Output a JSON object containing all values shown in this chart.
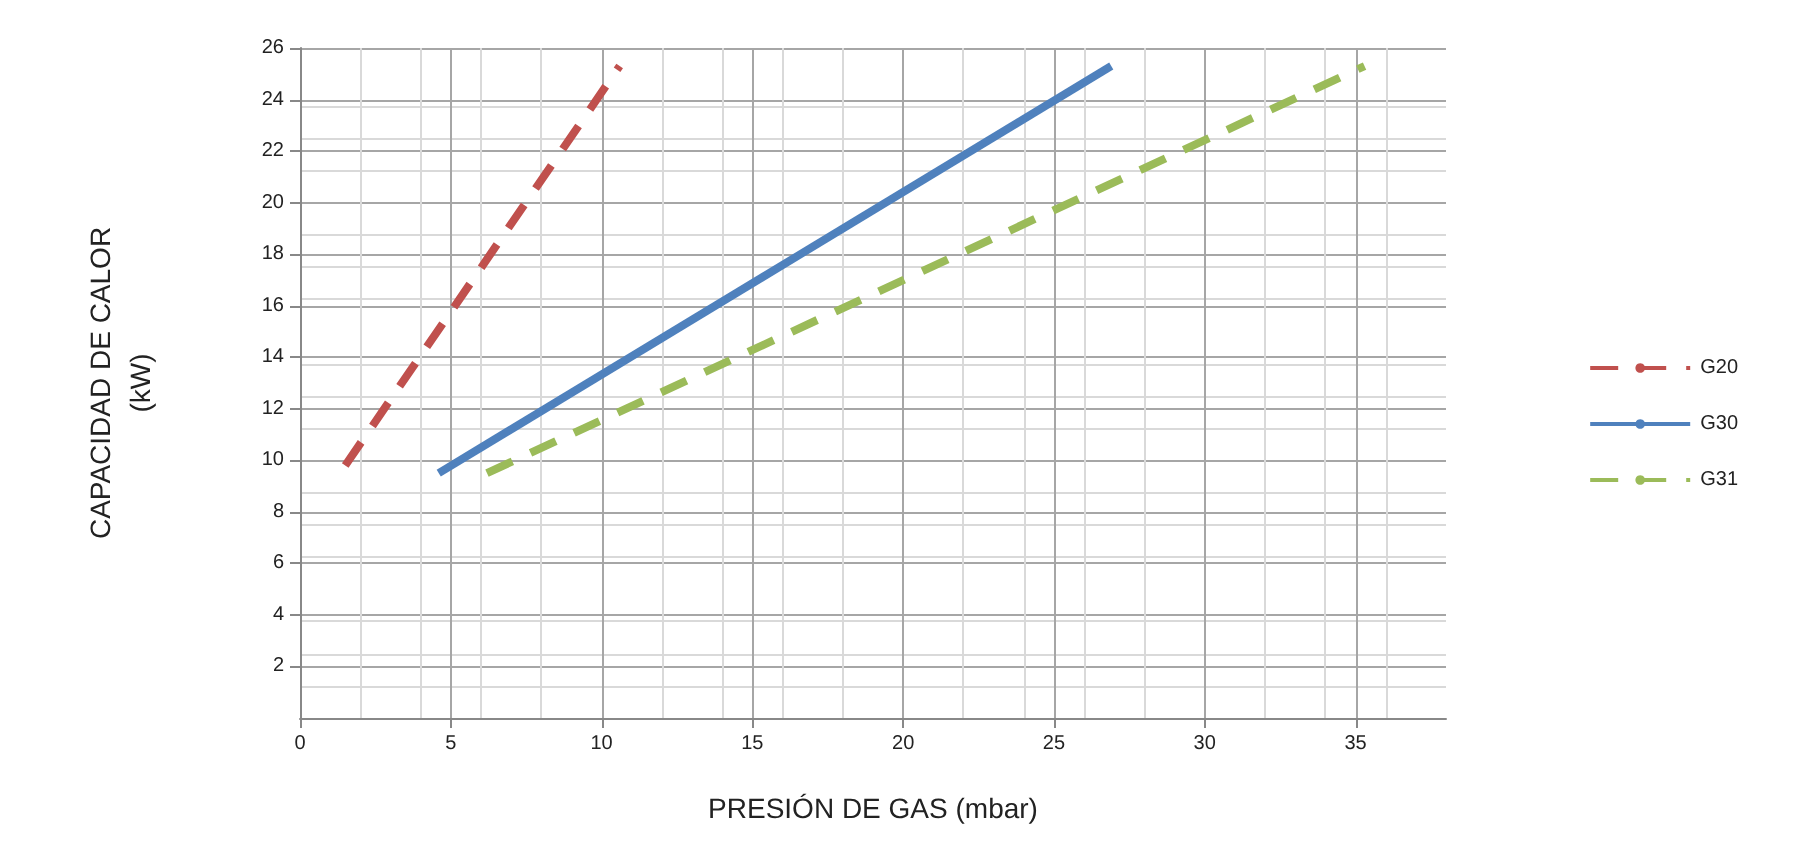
{
  "chart_data": {
    "type": "line",
    "xlabel": "PRESIÓN DE GAS (mbar)",
    "ylabel": "CAPACIDAD DE CALOR (kW)",
    "xlim": [
      0,
      38
    ],
    "xticks": [
      0,
      5,
      10,
      15,
      20,
      25,
      30,
      35
    ],
    "ylim": [
      0,
      26
    ],
    "yticks": [
      2,
      4,
      6,
      8,
      10,
      12,
      14,
      16,
      18,
      20,
      22,
      24,
      26
    ],
    "grid": true,
    "legend": "right",
    "marker": "none",
    "series": [
      {
        "name": "G20",
        "color": "#c0504d",
        "line_style": "dashed",
        "x": [
          1.5,
          10.6
        ],
        "values": [
          9.8,
          25.3
        ]
      },
      {
        "name": "G30",
        "color": "#4f81bd",
        "line_style": "solid",
        "x": [
          4.6,
          26.9
        ],
        "values": [
          9.5,
          25.3
        ]
      },
      {
        "name": "G31",
        "color": "#9bbb59",
        "line_style": "dashed",
        "x": [
          6.2,
          35.3
        ],
        "values": [
          9.5,
          25.3
        ]
      }
    ]
  }
}
